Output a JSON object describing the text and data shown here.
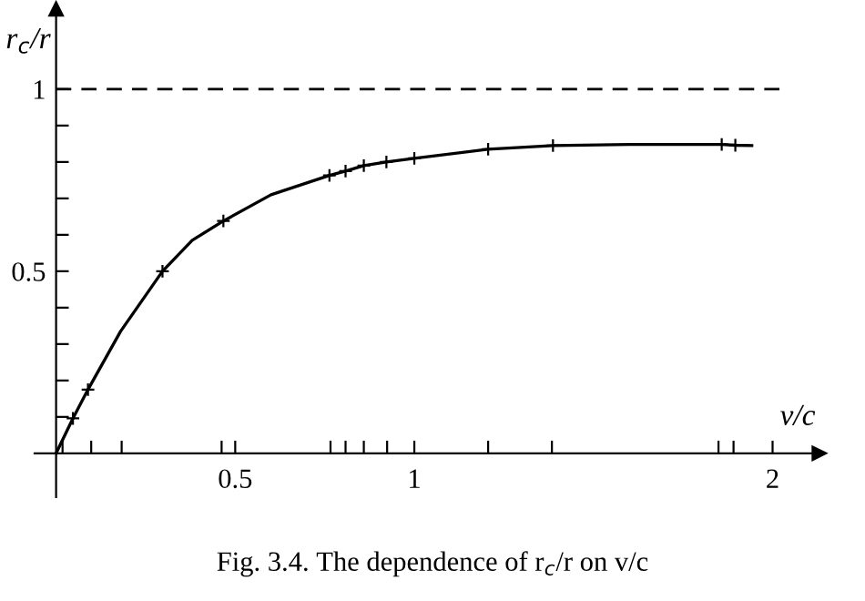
{
  "chart_data": {
    "type": "line",
    "xlabel": "v/c",
    "ylabel": "r$_{c}$/r",
    "annotations": [
      "Fig. 3.4. The dependence of r$_{c}$/r on v/c"
    ],
    "series": [
      {
        "color": "#000000",
        "marker": "none",
        "line_style": "solid",
        "x": [
          0,
          0.047,
          0.089,
          0.18,
          0.297,
          0.38,
          0.467,
          0.6,
          0.763,
          0.808,
          0.859,
          0.922,
          1.0,
          1.206,
          1.387,
          1.6,
          1.858,
          1.896,
          1.942
        ],
        "values": [
          0,
          0.096,
          0.175,
          0.335,
          0.5,
          0.585,
          0.638,
          0.71,
          0.763,
          0.775,
          0.79,
          0.8,
          0.81,
          0.835,
          0.845,
          0.848,
          0.848,
          0.846,
          0.845
        ]
      },
      {
        "type": "scatter",
        "color": "#000000",
        "marker": "cross",
        "x": [
          0.047,
          0.089,
          0.297,
          0.467,
          0.763,
          0.808,
          0.859,
          0.922,
          1.0,
          1.206,
          1.387,
          1.858,
          1.896
        ],
        "values": [
          0.096,
          0.175,
          0.5,
          0.638,
          0.763,
          0.775,
          0.79,
          0.8,
          0.81,
          0.835,
          0.845,
          0.848,
          0.846
        ]
      }
    ],
    "ref_lines": [
      {
        "axis": "y",
        "value": 1,
        "color": "#000000",
        "line_style": "dashed"
      }
    ],
    "xlim": [
      -0.06,
      2.13
    ],
    "ylim": [
      -0.12,
      1.22
    ],
    "xticks": [
      {
        "value": 0.018,
        "label": null
      },
      {
        "value": 0.098,
        "label": null
      },
      {
        "value": 0.183,
        "label": null
      },
      {
        "value": 0.462,
        "label": null
      },
      0.5,
      {
        "value": 0.766,
        "label": null
      },
      {
        "value": 0.808,
        "label": null
      },
      {
        "value": 0.859,
        "label": null
      },
      {
        "value": 0.924,
        "label": null
      },
      1,
      {
        "value": 1.206,
        "label": null
      },
      {
        "value": 1.384,
        "label": null
      },
      {
        "value": 1.849,
        "label": null
      },
      {
        "value": 1.891,
        "label": null
      },
      2
    ],
    "yticks": [
      {
        "value": 0.1,
        "label": null
      },
      {
        "value": 0.2,
        "label": null
      },
      {
        "value": 0.3,
        "label": null
      },
      {
        "value": 0.4,
        "label": null
      },
      0.5,
      {
        "value": 0.6,
        "label": null
      },
      {
        "value": 0.7,
        "label": null
      },
      {
        "value": 0.8,
        "label": null
      },
      {
        "value": 0.9,
        "label": null
      },
      1
    ],
    "grid": false,
    "legend": false
  }
}
